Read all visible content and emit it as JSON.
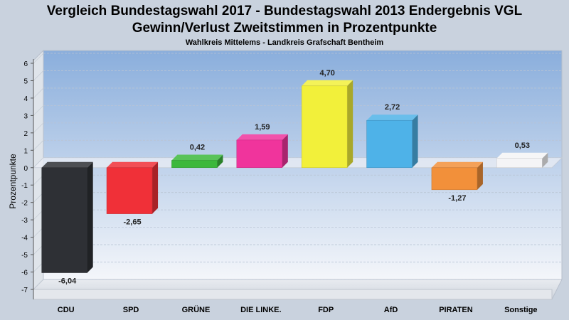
{
  "chart_data": {
    "type": "bar",
    "title": "Vergleich Bundestagswahl 2017 - Bundestagswahl 2013 Endergebnis VGL",
    "subtitle": "Gewinn/Verlust Zweitstimmen in Prozentpunkte",
    "subtitle2": "Wahlkreis Mittelems - Landkreis Grafschaft Bentheim",
    "ylabel": "Prozentpunkte",
    "xlabel": "",
    "ylim": [
      -7,
      6
    ],
    "yticks": [
      "6",
      "5",
      "4",
      "3",
      "2",
      "1",
      "0",
      "-1",
      "-2",
      "-3",
      "-4",
      "-5",
      "-6",
      "-7"
    ],
    "grid": true,
    "categories": [
      "CDU",
      "SPD",
      "GRÜNE",
      "DIE LINKE.",
      "FDP",
      "AfD",
      "PIRATEN",
      "Sonstige"
    ],
    "values": [
      -6.04,
      -2.65,
      0.42,
      1.59,
      4.7,
      2.72,
      -1.27,
      0.53
    ],
    "value_labels": [
      "-6,04",
      "-2,65",
      "0,42",
      "1,59",
      "4,70",
      "2,72",
      "-1,27",
      "0,53"
    ],
    "colors": [
      "#2e3035",
      "#f03038",
      "#3cb83c",
      "#f0349c",
      "#f2f03a",
      "#4eb2e8",
      "#f2903a",
      "#f4f4f6"
    ]
  }
}
